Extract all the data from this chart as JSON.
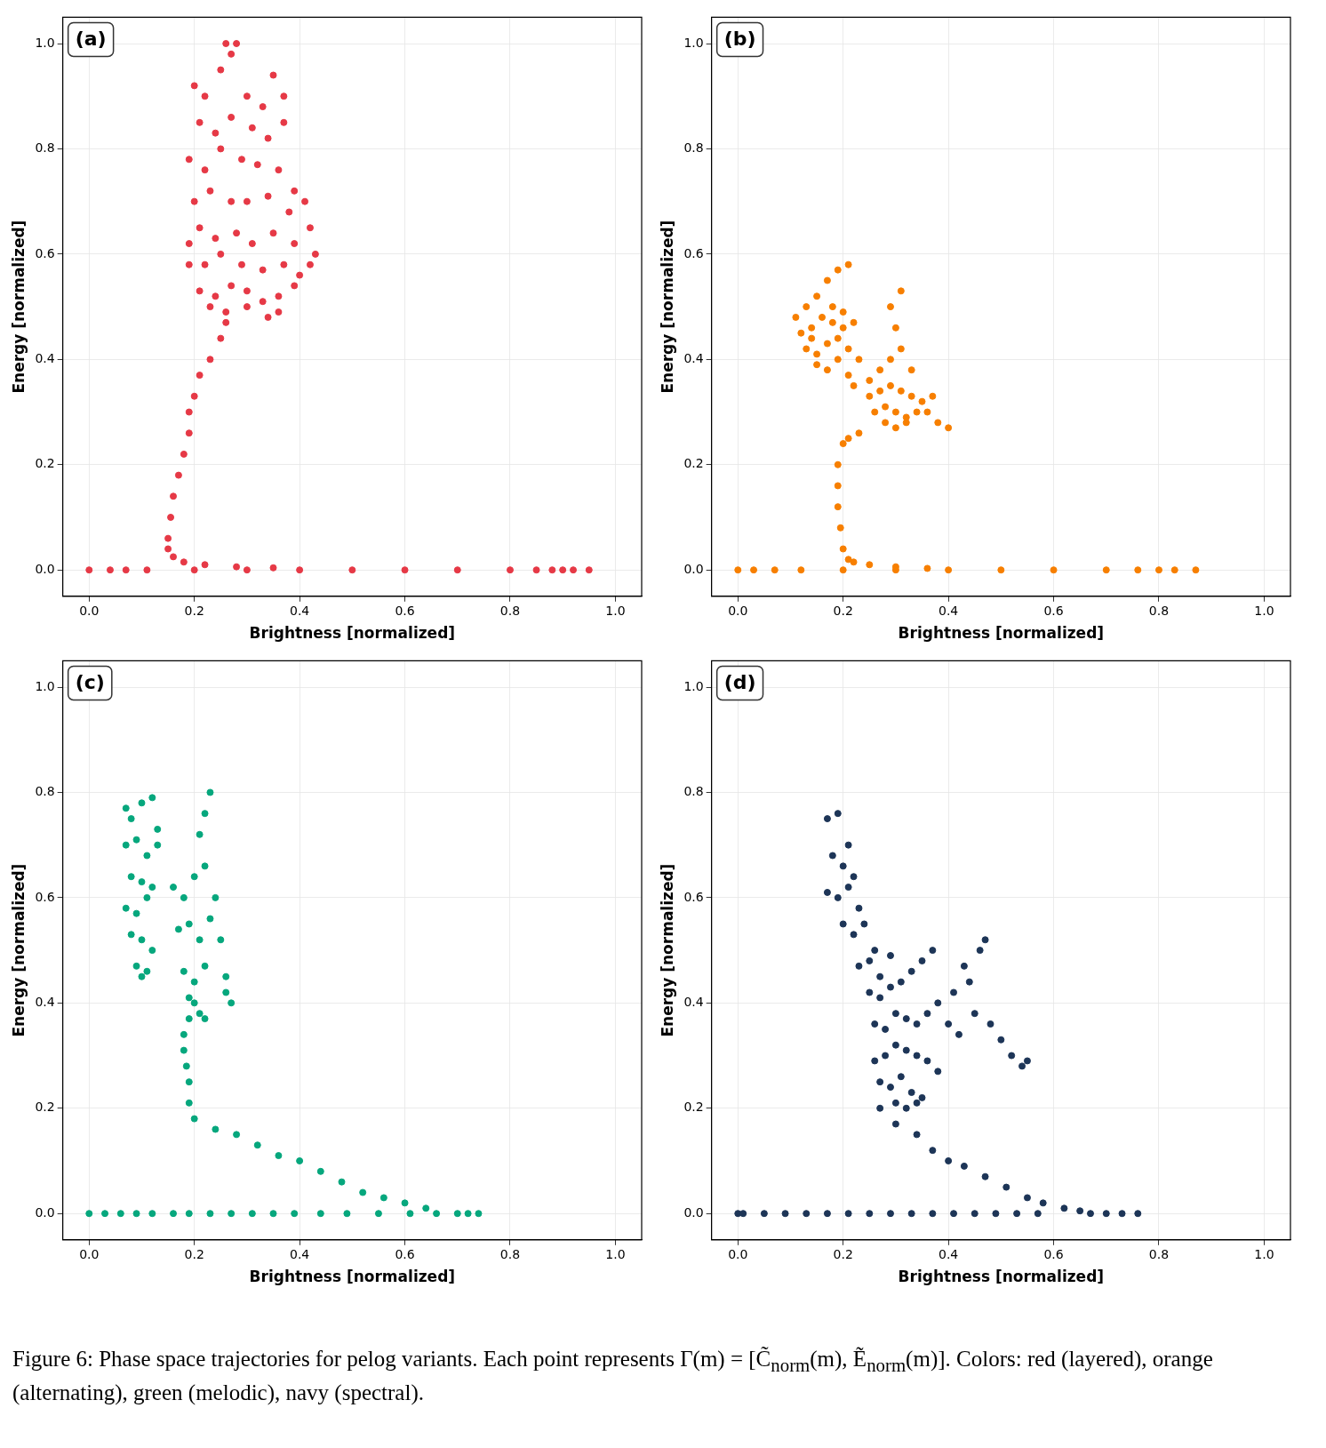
{
  "chart_data": [
    {
      "type": "scatter",
      "title": "(a)",
      "xlabel": "Brightness [normalized]",
      "ylabel": "Energy [normalized]",
      "grid": true,
      "legend": false,
      "marker": "circle",
      "xlim": [
        -0.05,
        1.05
      ],
      "ylim": [
        -0.05,
        1.05
      ],
      "xticks": [
        {
          "value": 0,
          "label": "0.0"
        },
        {
          "value": 0.2,
          "label": "0.2"
        },
        {
          "value": 0.4,
          "label": "0.4"
        },
        {
          "value": 0.6,
          "label": "0.6"
        },
        {
          "value": 0.8,
          "label": "0.8"
        },
        {
          "value": 1,
          "label": "1.0"
        }
      ],
      "yticks": [
        {
          "value": 0,
          "label": "0.0"
        },
        {
          "value": 0.2,
          "label": "0.2"
        },
        {
          "value": 0.4,
          "label": "0.4"
        },
        {
          "value": 0.6,
          "label": "0.6"
        },
        {
          "value": 0.8,
          "label": "0.8"
        },
        {
          "value": 1,
          "label": "1.0"
        }
      ],
      "series": [
        {
          "color": "#e63946",
          "x": [
            0,
            0.04,
            0.07,
            0.11,
            0.2,
            0.3,
            0.4,
            0.5,
            0.6,
            0.7,
            0.8,
            0.85,
            0.88,
            0.9,
            0.92,
            0.95,
            0.15,
            0.16,
            0.18,
            0.22,
            0.28,
            0.35,
            0.15,
            0.155,
            0.16,
            0.17,
            0.18,
            0.19,
            0.19,
            0.2,
            0.21,
            0.23,
            0.25,
            0.26,
            0.2,
            0.22,
            0.25,
            0.26,
            0.27,
            0.28,
            0.3,
            0.33,
            0.35,
            0.37,
            0.21,
            0.24,
            0.27,
            0.31,
            0.34,
            0.37,
            0.19,
            0.22,
            0.25,
            0.29,
            0.32,
            0.36,
            0.39,
            0.2,
            0.23,
            0.27,
            0.3,
            0.34,
            0.38,
            0.41,
            0.42,
            0.19,
            0.21,
            0.24,
            0.28,
            0.31,
            0.35,
            0.39,
            0.43,
            0.19,
            0.22,
            0.25,
            0.29,
            0.33,
            0.37,
            0.4,
            0.42,
            0.21,
            0.24,
            0.27,
            0.3,
            0.33,
            0.36,
            0.39,
            0.23,
            0.26,
            0.3,
            0.34,
            0.36
          ],
          "values": [
            0,
            0,
            0,
            0,
            0,
            0,
            0,
            0,
            0,
            0,
            0,
            0,
            0,
            0,
            0,
            0,
            0.04,
            0.025,
            0.015,
            0.01,
            0.006,
            0.004,
            0.06,
            0.1,
            0.14,
            0.18,
            0.22,
            0.26,
            0.3,
            0.33,
            0.37,
            0.4,
            0.44,
            0.47,
            0.92,
            0.9,
            0.95,
            1.0,
            0.98,
            1.0,
            0.9,
            0.88,
            0.94,
            0.9,
            0.85,
            0.83,
            0.86,
            0.84,
            0.82,
            0.85,
            0.78,
            0.76,
            0.8,
            0.78,
            0.77,
            0.76,
            0.72,
            0.7,
            0.72,
            0.7,
            0.7,
            0.71,
            0.68,
            0.7,
            0.65,
            0.62,
            0.65,
            0.63,
            0.64,
            0.62,
            0.64,
            0.62,
            0.6,
            0.58,
            0.58,
            0.6,
            0.58,
            0.57,
            0.58,
            0.56,
            0.58,
            0.53,
            0.52,
            0.54,
            0.53,
            0.51,
            0.52,
            0.54,
            0.5,
            0.49,
            0.5,
            0.48,
            0.49
          ]
        }
      ]
    },
    {
      "type": "scatter",
      "title": "(b)",
      "xlabel": "Brightness [normalized]",
      "ylabel": "Energy [normalized]",
      "grid": true,
      "legend": false,
      "marker": "circle",
      "xlim": [
        -0.05,
        1.05
      ],
      "ylim": [
        -0.05,
        1.05
      ],
      "xticks": [
        {
          "value": 0,
          "label": "0.0"
        },
        {
          "value": 0.2,
          "label": "0.2"
        },
        {
          "value": 0.4,
          "label": "0.4"
        },
        {
          "value": 0.6,
          "label": "0.6"
        },
        {
          "value": 0.8,
          "label": "0.8"
        },
        {
          "value": 1,
          "label": "1.0"
        }
      ],
      "yticks": [
        {
          "value": 0,
          "label": "0.0"
        },
        {
          "value": 0.2,
          "label": "0.2"
        },
        {
          "value": 0.4,
          "label": "0.4"
        },
        {
          "value": 0.6,
          "label": "0.6"
        },
        {
          "value": 0.8,
          "label": "0.8"
        },
        {
          "value": 1,
          "label": "1.0"
        }
      ],
      "series": [
        {
          "color": "#f77f00",
          "x": [
            0,
            0.03,
            0.07,
            0.12,
            0.2,
            0.3,
            0.4,
            0.5,
            0.6,
            0.7,
            0.76,
            0.8,
            0.83,
            0.87,
            0.21,
            0.22,
            0.25,
            0.3,
            0.36,
            0.2,
            0.195,
            0.19,
            0.19,
            0.19,
            0.2,
            0.21,
            0.23,
            0.11,
            0.13,
            0.15,
            0.17,
            0.19,
            0.21,
            0.12,
            0.14,
            0.16,
            0.18,
            0.2,
            0.22,
            0.13,
            0.15,
            0.17,
            0.19,
            0.21,
            0.15,
            0.17,
            0.19,
            0.14,
            0.18,
            0.2,
            0.23,
            0.21,
            0.22,
            0.25,
            0.27,
            0.29,
            0.31,
            0.33,
            0.25,
            0.27,
            0.29,
            0.31,
            0.33,
            0.35,
            0.26,
            0.28,
            0.3,
            0.32,
            0.34,
            0.28,
            0.3,
            0.32,
            0.3,
            0.36,
            0.38,
            0.4,
            0.37,
            0.29,
            0.31
          ],
          "values": [
            0,
            0,
            0,
            0,
            0,
            0,
            0,
            0,
            0,
            0,
            0,
            0,
            0,
            0,
            0.02,
            0.015,
            0.01,
            0.006,
            0.003,
            0.04,
            0.08,
            0.12,
            0.16,
            0.2,
            0.24,
            0.25,
            0.26,
            0.48,
            0.5,
            0.52,
            0.55,
            0.57,
            0.58,
            0.45,
            0.46,
            0.48,
            0.5,
            0.49,
            0.47,
            0.42,
            0.41,
            0.43,
            0.44,
            0.42,
            0.39,
            0.38,
            0.4,
            0.44,
            0.47,
            0.46,
            0.4,
            0.37,
            0.35,
            0.36,
            0.38,
            0.4,
            0.42,
            0.38,
            0.33,
            0.34,
            0.35,
            0.34,
            0.33,
            0.32,
            0.3,
            0.31,
            0.3,
            0.29,
            0.3,
            0.28,
            0.27,
            0.28,
            0.46,
            0.3,
            0.28,
            0.27,
            0.33,
            0.5,
            0.53
          ]
        }
      ]
    },
    {
      "type": "scatter",
      "title": "(c)",
      "xlabel": "Brightness [normalized]",
      "ylabel": "Energy [normalized]",
      "grid": true,
      "legend": false,
      "marker": "circle",
      "xlim": [
        -0.05,
        1.05
      ],
      "ylim": [
        -0.05,
        1.05
      ],
      "xticks": [
        {
          "value": 0,
          "label": "0.0"
        },
        {
          "value": 0.2,
          "label": "0.2"
        },
        {
          "value": 0.4,
          "label": "0.4"
        },
        {
          "value": 0.6,
          "label": "0.6"
        },
        {
          "value": 0.8,
          "label": "0.8"
        },
        {
          "value": 1,
          "label": "1.0"
        }
      ],
      "yticks": [
        {
          "value": 0,
          "label": "0.0"
        },
        {
          "value": 0.2,
          "label": "0.2"
        },
        {
          "value": 0.4,
          "label": "0.4"
        },
        {
          "value": 0.6,
          "label": "0.6"
        },
        {
          "value": 0.8,
          "label": "0.8"
        },
        {
          "value": 1,
          "label": "1.0"
        }
      ],
      "series": [
        {
          "color": "#06a77d",
          "x": [
            0,
            0.03,
            0.06,
            0.09,
            0.12,
            0.16,
            0.19,
            0.23,
            0.27,
            0.31,
            0.35,
            0.39,
            0.44,
            0.49,
            0.55,
            0.61,
            0.66,
            0.7,
            0.72,
            0.74,
            0.2,
            0.24,
            0.28,
            0.32,
            0.36,
            0.4,
            0.44,
            0.48,
            0.52,
            0.56,
            0.6,
            0.64,
            0.19,
            0.19,
            0.185,
            0.18,
            0.18,
            0.19,
            0.07,
            0.08,
            0.1,
            0.12,
            0.13,
            0.07,
            0.09,
            0.11,
            0.13,
            0.08,
            0.1,
            0.12,
            0.07,
            0.09,
            0.11,
            0.08,
            0.1,
            0.12,
            0.09,
            0.11,
            0.1,
            0.16,
            0.18,
            0.2,
            0.22,
            0.24,
            0.17,
            0.19,
            0.21,
            0.23,
            0.18,
            0.2,
            0.22,
            0.19,
            0.21,
            0.2,
            0.22,
            0.21,
            0.23,
            0.22,
            0.25,
            0.26,
            0.27,
            0.26
          ],
          "values": [
            0,
            0,
            0,
            0,
            0,
            0,
            0,
            0,
            0,
            0,
            0,
            0,
            0,
            0,
            0,
            0,
            0,
            0,
            0,
            0,
            0.18,
            0.16,
            0.15,
            0.13,
            0.11,
            0.1,
            0.08,
            0.06,
            0.04,
            0.03,
            0.02,
            0.01,
            0.21,
            0.25,
            0.28,
            0.31,
            0.34,
            0.37,
            0.77,
            0.75,
            0.78,
            0.79,
            0.73,
            0.7,
            0.71,
            0.68,
            0.7,
            0.64,
            0.63,
            0.62,
            0.58,
            0.57,
            0.6,
            0.53,
            0.52,
            0.5,
            0.47,
            0.46,
            0.45,
            0.62,
            0.6,
            0.64,
            0.66,
            0.6,
            0.54,
            0.55,
            0.52,
            0.56,
            0.46,
            0.44,
            0.47,
            0.41,
            0.38,
            0.4,
            0.37,
            0.72,
            0.8,
            0.76,
            0.52,
            0.42,
            0.4,
            0.45
          ]
        }
      ]
    },
    {
      "type": "scatter",
      "title": "(d)",
      "xlabel": "Brightness [normalized]",
      "ylabel": "Energy [normalized]",
      "grid": true,
      "legend": false,
      "marker": "circle",
      "xlim": [
        -0.05,
        1.05
      ],
      "ylim": [
        -0.05,
        1.05
      ],
      "xticks": [
        {
          "value": 0,
          "label": "0.0"
        },
        {
          "value": 0.2,
          "label": "0.2"
        },
        {
          "value": 0.4,
          "label": "0.4"
        },
        {
          "value": 0.6,
          "label": "0.6"
        },
        {
          "value": 0.8,
          "label": "0.8"
        },
        {
          "value": 1,
          "label": "1.0"
        }
      ],
      "yticks": [
        {
          "value": 0,
          "label": "0.0"
        },
        {
          "value": 0.2,
          "label": "0.2"
        },
        {
          "value": 0.4,
          "label": "0.4"
        },
        {
          "value": 0.6,
          "label": "0.6"
        },
        {
          "value": 0.8,
          "label": "0.8"
        },
        {
          "value": 1,
          "label": "1.0"
        }
      ],
      "annotations": [
        "Figure 6: Phase space trajectories for pelog variants. Each point represents Γ(m) = [C̃$_{norm}$(m), Ẽ$_{norm}$(m)]. Colors: red (layered), orange (alternating), green (melodic), navy (spectral)."
      ],
      "series": [
        {
          "color": "#1d3557",
          "x": [
            0,
            0.01,
            0.05,
            0.09,
            0.13,
            0.17,
            0.21,
            0.25,
            0.29,
            0.33,
            0.37,
            0.41,
            0.45,
            0.49,
            0.53,
            0.57,
            0.67,
            0.7,
            0.73,
            0.76,
            0.27,
            0.3,
            0.34,
            0.37,
            0.4,
            0.43,
            0.47,
            0.51,
            0.55,
            0.58,
            0.62,
            0.65,
            0.17,
            0.19,
            0.21,
            0.18,
            0.2,
            0.22,
            0.17,
            0.19,
            0.21,
            0.23,
            0.2,
            0.22,
            0.24,
            0.26,
            0.23,
            0.25,
            0.27,
            0.29,
            0.25,
            0.27,
            0.29,
            0.31,
            0.33,
            0.35,
            0.37,
            0.26,
            0.28,
            0.3,
            0.32,
            0.34,
            0.36,
            0.38,
            0.41,
            0.44,
            0.47,
            0.26,
            0.28,
            0.3,
            0.32,
            0.34,
            0.36,
            0.38,
            0.27,
            0.29,
            0.31,
            0.33,
            0.35,
            0.3,
            0.32,
            0.34,
            0.4,
            0.42,
            0.45,
            0.48,
            0.5,
            0.52,
            0.54,
            0.55,
            0.43,
            0.46
          ],
          "values": [
            0,
            0,
            0,
            0,
            0,
            0,
            0,
            0,
            0,
            0,
            0,
            0,
            0,
            0,
            0,
            0,
            0,
            0,
            0,
            0,
            0.2,
            0.17,
            0.15,
            0.12,
            0.1,
            0.09,
            0.07,
            0.05,
            0.03,
            0.02,
            0.01,
            0.005,
            0.75,
            0.76,
            0.7,
            0.68,
            0.66,
            0.64,
            0.61,
            0.6,
            0.62,
            0.58,
            0.55,
            0.53,
            0.55,
            0.5,
            0.47,
            0.48,
            0.45,
            0.49,
            0.42,
            0.41,
            0.43,
            0.44,
            0.46,
            0.48,
            0.5,
            0.36,
            0.35,
            0.38,
            0.37,
            0.36,
            0.38,
            0.4,
            0.42,
            0.44,
            0.52,
            0.29,
            0.3,
            0.32,
            0.31,
            0.3,
            0.29,
            0.27,
            0.25,
            0.24,
            0.26,
            0.23,
            0.22,
            0.21,
            0.2,
            0.21,
            0.36,
            0.34,
            0.38,
            0.36,
            0.33,
            0.3,
            0.28,
            0.29,
            0.47,
            0.5
          ]
        }
      ]
    }
  ]
}
